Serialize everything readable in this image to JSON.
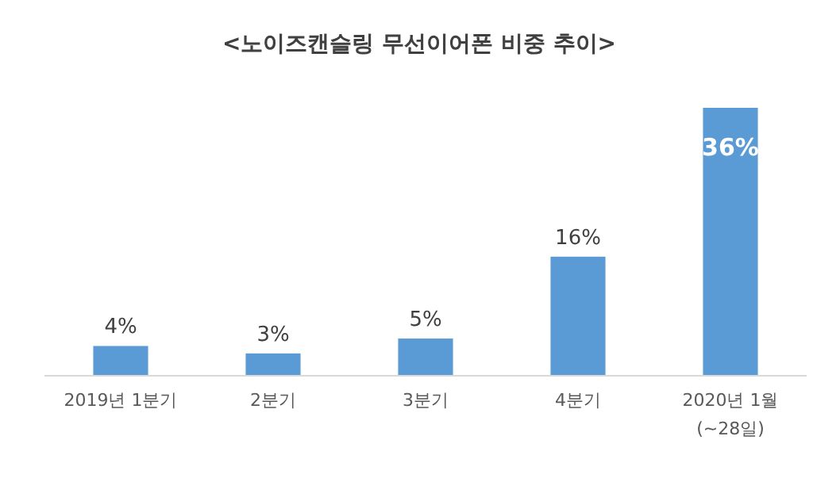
{
  "chart_data": {
    "type": "bar",
    "title": "<노이즈캔슬링 무선이어폰 비중 추이>",
    "categories": [
      "2019년 1분기",
      "2분기",
      "3분기",
      "4분기",
      "2020년 1월\n(~28일)"
    ],
    "values": [
      4,
      3,
      5,
      16,
      36
    ],
    "value_labels": [
      "4%",
      "3%",
      "5%",
      "16%",
      "36%"
    ],
    "color": "#5b9bd5"
  }
}
